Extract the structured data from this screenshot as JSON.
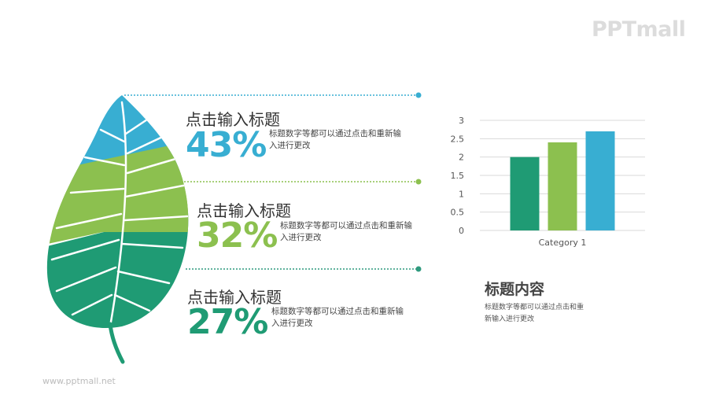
{
  "logo": "PPTmall",
  "footer_url": "www.pptmall.net",
  "colors": {
    "blue": "#38aed2",
    "light_green": "#8cc04f",
    "dark_green": "#1f9b74",
    "connector_dark": "#2f9a7e"
  },
  "items": [
    {
      "title": "点击输入标题",
      "percent": "43%",
      "desc": "标题数字等都可以通过点击和重新输入进行更改",
      "color": "#38aed2"
    },
    {
      "title": "点击输入标题",
      "percent": "32%",
      "desc": "标题数字等都可以通过点击和重新输入进行更改",
      "color": "#8cc04f"
    },
    {
      "title": "点击输入标题",
      "percent": "27%",
      "desc": "标题数字等都可以通过点击和重新输入进行更改",
      "color": "#1f9b74"
    }
  ],
  "chart_data": {
    "type": "bar",
    "categories": [
      "Category 1"
    ],
    "series": [
      {
        "values": [
          2.0
        ],
        "color": "#1f9b74"
      },
      {
        "values": [
          2.4
        ],
        "color": "#8cc04f"
      },
      {
        "values": [
          2.7
        ],
        "color": "#38aed2"
      }
    ],
    "ylim": [
      0,
      3
    ],
    "yticks": [
      "0",
      "0.5",
      "1",
      "1.5",
      "2",
      "2.5",
      "3"
    ],
    "grid": true,
    "legend": "none"
  },
  "side_text": {
    "title": "标题内容",
    "desc": "标题数字等都可以通过点击和重新输入进行更改"
  }
}
